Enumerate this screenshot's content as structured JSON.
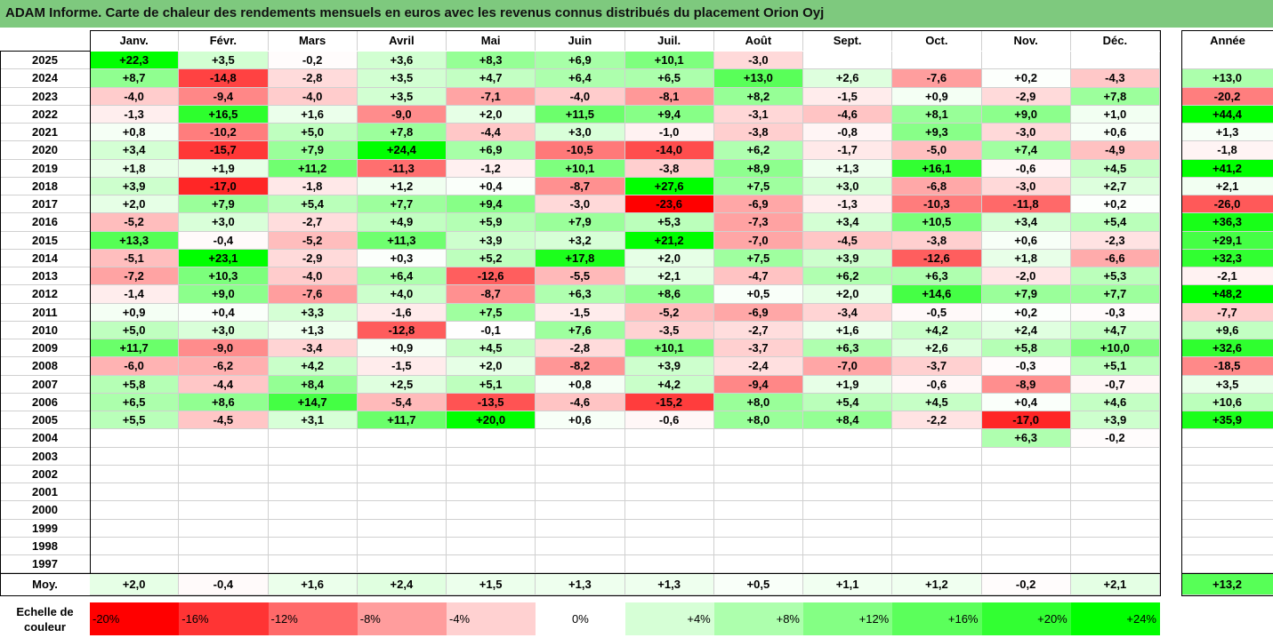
{
  "title": "ADAM Informe. Carte de chaleur des rendements mensuels en euros avec les revenus connus distribués du placement Orion Oyj",
  "chart_data": {
    "type": "heatmap",
    "title": "ADAM Informe. Carte de chaleur des rendements mensuels en euros avec les revenus connus distribués du placement Orion Oyj",
    "columns": [
      "Janv.",
      "Févr.",
      "Mars",
      "Avril",
      "Mai",
      "Juin",
      "Juil.",
      "Août",
      "Sept.",
      "Oct.",
      "Nov.",
      "Déc."
    ],
    "year_column_label": "Année",
    "rows": [
      {
        "year": "2025",
        "values": [
          "+22,3",
          "+3,5",
          "-0,2",
          "+3,6",
          "+8,3",
          "+6,9",
          "+10,1",
          "-3,0",
          "",
          "",
          "",
          ""
        ],
        "annual": ""
      },
      {
        "year": "2024",
        "values": [
          "+8,7",
          "-14,8",
          "-2,8",
          "+3,5",
          "+4,7",
          "+6,4",
          "+6,5",
          "+13,0",
          "+2,6",
          "-7,6",
          "+0,2",
          "-4,3"
        ],
        "annual": "+13,0"
      },
      {
        "year": "2023",
        "values": [
          "-4,0",
          "-9,4",
          "-4,0",
          "+3,5",
          "-7,1",
          "-4,0",
          "-8,1",
          "+8,2",
          "-1,5",
          "+0,9",
          "-2,9",
          "+7,8"
        ],
        "annual": "-20,2"
      },
      {
        "year": "2022",
        "values": [
          "-1,3",
          "+16,5",
          "+1,6",
          "-9,0",
          "+2,0",
          "+11,5",
          "+9,4",
          "-3,1",
          "-4,6",
          "+8,1",
          "+9,0",
          "+1,0"
        ],
        "annual": "+44,4"
      },
      {
        "year": "2021",
        "values": [
          "+0,8",
          "-10,2",
          "+5,0",
          "+7,8",
          "-4,4",
          "+3,0",
          "-1,0",
          "-3,8",
          "-0,8",
          "+9,3",
          "-3,0",
          "+0,6"
        ],
        "annual": "+1,3"
      },
      {
        "year": "2020",
        "values": [
          "+3,4",
          "-15,7",
          "+7,9",
          "+24,4",
          "+6,9",
          "-10,5",
          "-14,0",
          "+6,2",
          "-1,7",
          "-5,0",
          "+7,4",
          "-4,9"
        ],
        "annual": "-1,8"
      },
      {
        "year": "2019",
        "values": [
          "+1,8",
          "+1,9",
          "+11,2",
          "-11,3",
          "-1,2",
          "+10,1",
          "-3,8",
          "+8,9",
          "+1,3",
          "+16,1",
          "-0,6",
          "+4,5"
        ],
        "annual": "+41,2"
      },
      {
        "year": "2018",
        "values": [
          "+3,9",
          "-17,0",
          "-1,8",
          "+1,2",
          "+0,4",
          "-8,7",
          "+27,6",
          "+7,5",
          "+3,0",
          "-6,8",
          "-3,0",
          "+2,7"
        ],
        "annual": "+2,1"
      },
      {
        "year": "2017",
        "values": [
          "+2,0",
          "+7,9",
          "+5,4",
          "+7,7",
          "+9,4",
          "-3,0",
          "-23,6",
          "-6,9",
          "-1,3",
          "-10,3",
          "-11,8",
          "+0,2"
        ],
        "annual": "-26,0"
      },
      {
        "year": "2016",
        "values": [
          "-5,2",
          "+3,0",
          "-2,7",
          "+4,9",
          "+5,9",
          "+7,9",
          "+5,3",
          "-7,3",
          "+3,4",
          "+10,5",
          "+3,4",
          "+5,4"
        ],
        "annual": "+36,3"
      },
      {
        "year": "2015",
        "values": [
          "+13,3",
          "-0,4",
          "-5,2",
          "+11,3",
          "+3,9",
          "+3,2",
          "+21,2",
          "-7,0",
          "-4,5",
          "-3,8",
          "+0,6",
          "-2,3"
        ],
        "annual": "+29,1"
      },
      {
        "year": "2014",
        "values": [
          "-5,1",
          "+23,1",
          "-2,9",
          "+0,3",
          "+5,2",
          "+17,8",
          "+2,0",
          "+7,5",
          "+3,9",
          "-12,6",
          "+1,8",
          "-6,6"
        ],
        "annual": "+32,3"
      },
      {
        "year": "2013",
        "values": [
          "-7,2",
          "+10,3",
          "-4,0",
          "+6,4",
          "-12,6",
          "-5,5",
          "+2,1",
          "-4,7",
          "+6,2",
          "+6,3",
          "-2,0",
          "+5,3"
        ],
        "annual": "-2,1"
      },
      {
        "year": "2012",
        "values": [
          "-1,4",
          "+9,0",
          "-7,6",
          "+4,0",
          "-8,7",
          "+6,3",
          "+8,6",
          "+0,5",
          "+2,0",
          "+14,6",
          "+7,9",
          "+7,7"
        ],
        "annual": "+48,2"
      },
      {
        "year": "2011",
        "values": [
          "+0,9",
          "+0,4",
          "+3,3",
          "-1,6",
          "+7,5",
          "-1,5",
          "-5,2",
          "-6,9",
          "-3,4",
          "-0,5",
          "+0,2",
          "-0,3"
        ],
        "annual": "-7,7"
      },
      {
        "year": "2010",
        "values": [
          "+5,0",
          "+3,0",
          "+1,3",
          "-12,8",
          "-0,1",
          "+7,6",
          "-3,5",
          "-2,7",
          "+1,6",
          "+4,2",
          "+2,4",
          "+4,7"
        ],
        "annual": "+9,6"
      },
      {
        "year": "2009",
        "values": [
          "+11,7",
          "-9,0",
          "-3,4",
          "+0,9",
          "+4,5",
          "-2,8",
          "+10,1",
          "-3,7",
          "+6,3",
          "+2,6",
          "+5,8",
          "+10,0"
        ],
        "annual": "+32,6"
      },
      {
        "year": "2008",
        "values": [
          "-6,0",
          "-6,2",
          "+4,2",
          "-1,5",
          "+2,0",
          "-8,2",
          "+3,9",
          "-2,4",
          "-7,0",
          "-3,7",
          "-0,3",
          "+5,1"
        ],
        "annual": "-18,5"
      },
      {
        "year": "2007",
        "values": [
          "+5,8",
          "-4,4",
          "+8,4",
          "+2,5",
          "+5,1",
          "+0,8",
          "+4,2",
          "-9,4",
          "+1,9",
          "-0,6",
          "-8,9",
          "-0,7"
        ],
        "annual": "+3,5"
      },
      {
        "year": "2006",
        "values": [
          "+6,5",
          "+8,6",
          "+14,7",
          "-5,4",
          "-13,5",
          "-4,6",
          "-15,2",
          "+8,0",
          "+5,4",
          "+4,5",
          "+0,4",
          "+4,6"
        ],
        "annual": "+10,6"
      },
      {
        "year": "2005",
        "values": [
          "+5,5",
          "-4,5",
          "+3,1",
          "+11,7",
          "+20,0",
          "+0,6",
          "-0,6",
          "+8,0",
          "+8,4",
          "-2,2",
          "-17,0",
          "+3,9"
        ],
        "annual": "+35,9"
      },
      {
        "year": "2004",
        "values": [
          "",
          "",
          "",
          "",
          "",
          "",
          "",
          "",
          "",
          "",
          "+6,3",
          "-0,2"
        ],
        "annual": ""
      },
      {
        "year": "2003",
        "values": [
          "",
          "",
          "",
          "",
          "",
          "",
          "",
          "",
          "",
          "",
          "",
          ""
        ],
        "annual": ""
      },
      {
        "year": "2002",
        "values": [
          "",
          "",
          "",
          "",
          "",
          "",
          "",
          "",
          "",
          "",
          "",
          ""
        ],
        "annual": ""
      },
      {
        "year": "2001",
        "values": [
          "",
          "",
          "",
          "",
          "",
          "",
          "",
          "",
          "",
          "",
          "",
          ""
        ],
        "annual": ""
      },
      {
        "year": "2000",
        "values": [
          "",
          "",
          "",
          "",
          "",
          "",
          "",
          "",
          "",
          "",
          "",
          ""
        ],
        "annual": ""
      },
      {
        "year": "1999",
        "values": [
          "",
          "",
          "",
          "",
          "",
          "",
          "",
          "",
          "",
          "",
          "",
          ""
        ],
        "annual": ""
      },
      {
        "year": "1998",
        "values": [
          "",
          "",
          "",
          "",
          "",
          "",
          "",
          "",
          "",
          "",
          "",
          ""
        ],
        "annual": ""
      },
      {
        "year": "1997",
        "values": [
          "",
          "",
          "",
          "",
          "",
          "",
          "",
          "",
          "",
          "",
          "",
          ""
        ],
        "annual": ""
      }
    ],
    "average": {
      "label": "Moy.",
      "values": [
        "+2,0",
        "-0,4",
        "+1,6",
        "+2,4",
        "+1,5",
        "+1,3",
        "+1,3",
        "+0,5",
        "+1,1",
        "+1,2",
        "-0,2",
        "+2,1"
      ],
      "annual": "+13,2"
    },
    "legend": {
      "label": "Echelle de couleur",
      "steps": [
        {
          "label": "-20%",
          "color": "#ff0000"
        },
        {
          "label": "-16%",
          "color": "#ff3434"
        },
        {
          "label": "-12%",
          "color": "#ff6969"
        },
        {
          "label": "-8%",
          "color": "#ff9d9d"
        },
        {
          "label": "-4%",
          "color": "#ffd1d1"
        },
        {
          "label": "0%",
          "color": "#ffffff"
        },
        {
          "label": "+4%",
          "color": "#d6ffd6"
        },
        {
          "label": "+8%",
          "color": "#adffad"
        },
        {
          "label": "+12%",
          "color": "#84ff84"
        },
        {
          "label": "+16%",
          "color": "#5bff5b"
        },
        {
          "label": "+20%",
          "color": "#32ff32"
        },
        {
          "label": "+24%",
          "color": "#00ff00"
        }
      ]
    },
    "colors": {
      "negative_max": "#ff0000",
      "neutral": "#ffffff",
      "positive_max": "#00ff00",
      "title_bar": "#7ec97e"
    }
  }
}
